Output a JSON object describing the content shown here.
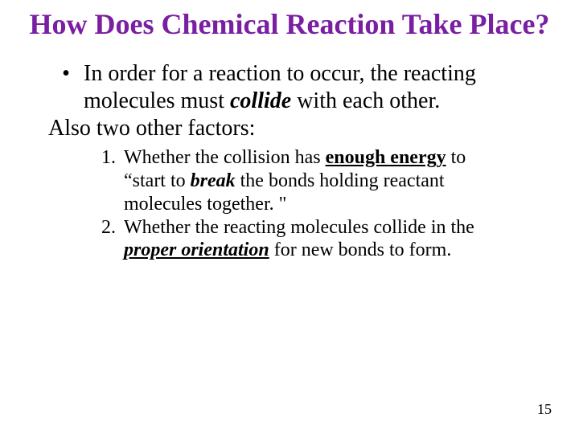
{
  "title_color": "#7a1fa2",
  "title": "How Does Chemical Reaction Take Place?",
  "bullet_marker": "•",
  "bullet": {
    "pre": "In order for a reaction to occur, the reacting molecules must ",
    "collide": "collide",
    "post": " with each other."
  },
  "also": "Also two other factors:",
  "items": [
    {
      "num": "1.",
      "a": "Whether the collision has ",
      "enough_energy": "enough energy",
      "b": " to “start to ",
      "break": "break",
      "c": " the bonds holding reactant molecules together. \""
    },
    {
      "num": "2.",
      "a": "Whether the reacting molecules collide in the ",
      "proper": "proper orientation",
      "b": " for new bonds to form."
    }
  ],
  "page_number": "15"
}
